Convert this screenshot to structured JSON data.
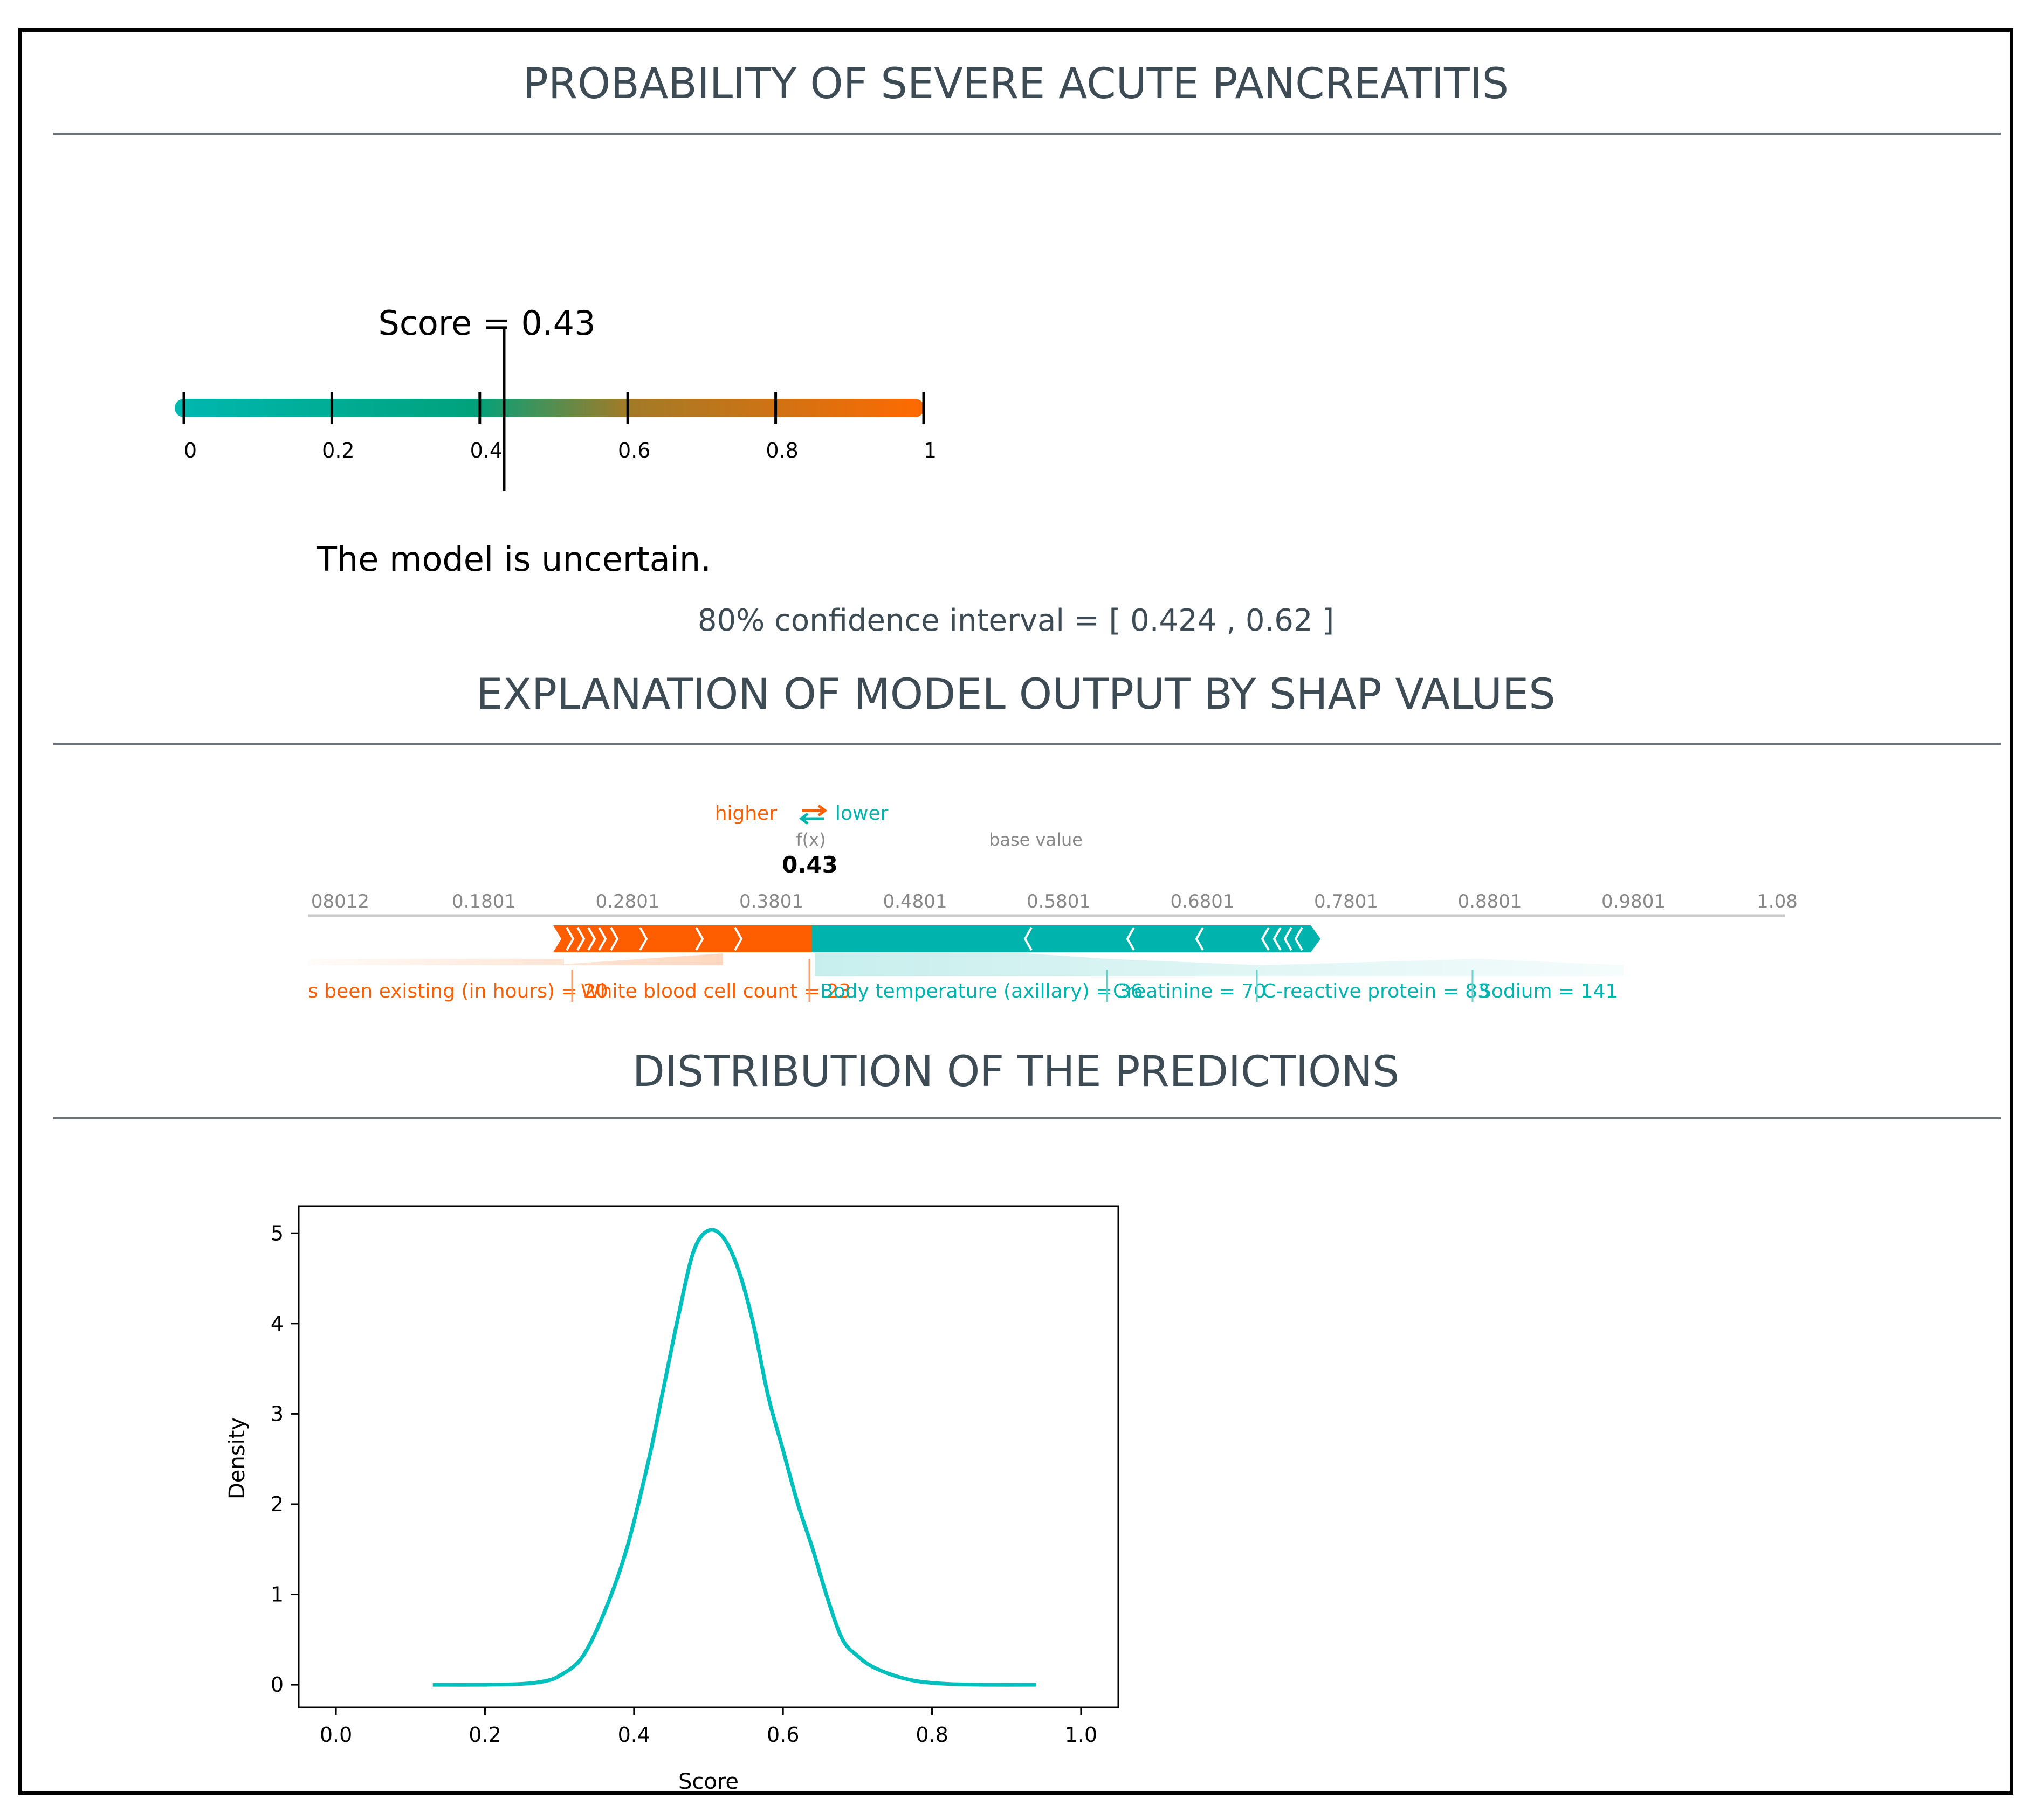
{
  "sections": {
    "probability_title": "PROBABILITY OF SEVERE ACUTE PANCREATITIS",
    "shap_title": "EXPLANATION OF MODEL OUTPUT BY SHAP VALUES",
    "distribution_title": "DISTRIBUTION OF THE PREDICTIONS"
  },
  "score_gauge": {
    "score_label": "Score = 0.43",
    "score": 0.43,
    "ticks": [
      "0",
      "0.2",
      "0.4",
      "0.6",
      "0.8",
      "1"
    ],
    "tick_values": [
      0,
      0.2,
      0.4,
      0.6,
      0.8,
      1
    ],
    "message": "The model is uncertain.",
    "confidence_interval": "80% confidence interval = [ 0.424 , 0.62 ]",
    "colors": {
      "low": "#00b8b0",
      "high": "#ff6a00"
    }
  },
  "shap": {
    "legend_higher": "higher",
    "legend_lower": "lower",
    "fx_label": "f(x)",
    "fx_value": "0.43",
    "base_label": "base value",
    "axis_ticks": [
      "08012",
      "0.1801",
      "0.2801",
      "0.3801",
      "0.4801",
      "0.5801",
      "0.6801",
      "0.7801",
      "0.8801",
      "0.9801",
      "1.08"
    ],
    "base_value": 0.58,
    "features_higher": [
      "s been existing (in hours) = 20",
      "White blood cell count = 23"
    ],
    "features_lower": [
      "Body temperature (axillary) = 36",
      "Creatinine = 70",
      "C-reactive protein = 83",
      "Sodium = 141"
    ],
    "colors": {
      "higher": "#ff5e00",
      "lower": "#00b3ad"
    }
  },
  "chart_data": {
    "type": "line",
    "title": "",
    "xlabel": "Score",
    "ylabel": "Density",
    "xlim": [
      -0.05,
      1.05
    ],
    "ylim": [
      -0.25,
      5.3
    ],
    "x_ticks": [
      "0.0",
      "0.2",
      "0.4",
      "0.6",
      "0.8",
      "1.0"
    ],
    "x_tick_values": [
      0.0,
      0.2,
      0.4,
      0.6,
      0.8,
      1.0
    ],
    "y_ticks": [
      "0",
      "1",
      "2",
      "3",
      "4",
      "5"
    ],
    "y_tick_values": [
      0,
      1,
      2,
      3,
      4,
      5
    ],
    "series": [
      {
        "color": "#00c0be",
        "x": [
          0.13,
          0.2,
          0.25,
          0.28,
          0.3,
          0.33,
          0.36,
          0.39,
          0.42,
          0.44,
          0.46,
          0.48,
          0.5,
          0.52,
          0.54,
          0.56,
          0.58,
          0.6,
          0.62,
          0.64,
          0.66,
          0.68,
          0.7,
          0.72,
          0.75,
          0.78,
          0.82,
          0.87,
          0.94
        ],
        "y": [
          0.0,
          0.0,
          0.01,
          0.04,
          0.1,
          0.3,
          0.8,
          1.5,
          2.5,
          3.3,
          4.1,
          4.8,
          5.03,
          4.95,
          4.6,
          4.0,
          3.2,
          2.6,
          2.0,
          1.5,
          0.95,
          0.5,
          0.32,
          0.2,
          0.1,
          0.04,
          0.01,
          0.0,
          0.0
        ]
      }
    ],
    "grid": false,
    "legend": "none"
  }
}
